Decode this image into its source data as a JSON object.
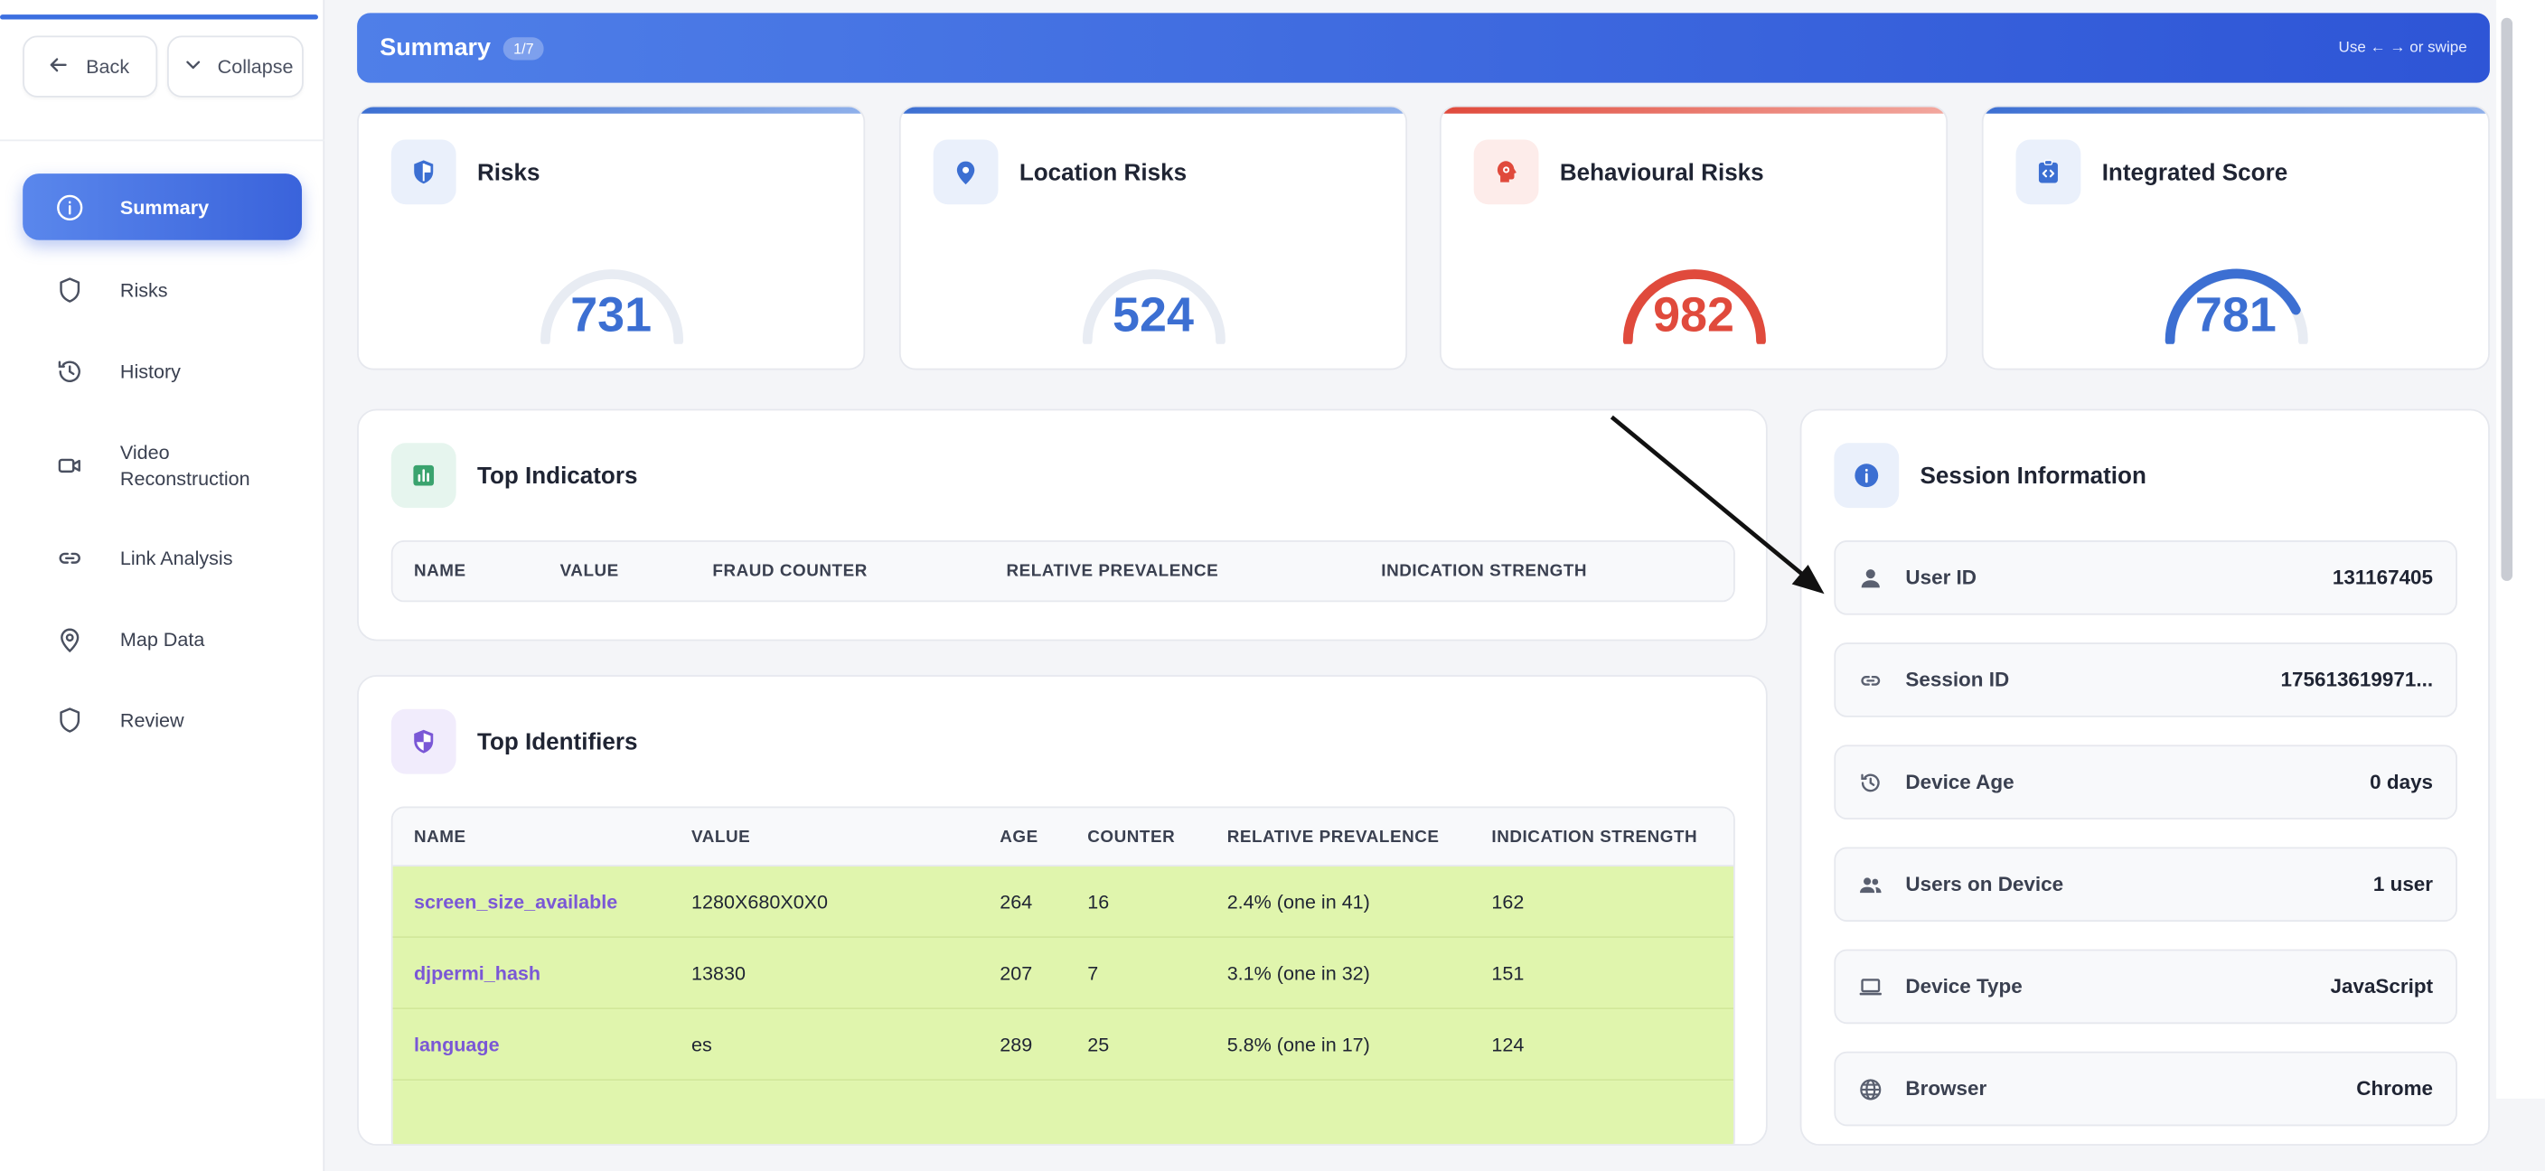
{
  "sidebar": {
    "back_label": "Back",
    "collapse_label": "Collapse",
    "items": [
      {
        "label": "Summary",
        "icon": "info-icon",
        "active": true
      },
      {
        "label": "Risks",
        "icon": "shield-icon"
      },
      {
        "label": "History",
        "icon": "history-icon"
      },
      {
        "label": "Video Reconstruction",
        "icon": "video-icon"
      },
      {
        "label": "Link Analysis",
        "icon": "link-icon"
      },
      {
        "label": "Map Data",
        "icon": "map-pin-icon"
      },
      {
        "label": "Review",
        "icon": "shield-icon"
      }
    ]
  },
  "header": {
    "title": "Summary",
    "badge": "1/7",
    "hint": "Use ← → or swipe"
  },
  "score_cards": [
    {
      "title": "Risks",
      "value": "731",
      "icon": "shield-half-icon",
      "accent": "#3c6fd2"
    },
    {
      "title": "Location Risks",
      "value": "524",
      "icon": "map-pin-icon",
      "accent": "#3c6fd2"
    },
    {
      "title": "Behavioural Risks",
      "value": "982",
      "icon": "brain-alert-icon",
      "accent": "#e04a3c"
    },
    {
      "title": "Integrated Score",
      "value": "781",
      "icon": "code-icon",
      "accent": "#3c6fd2"
    }
  ],
  "top_indicators": {
    "title": "Top Indicators",
    "columns": [
      "NAME",
      "VALUE",
      "FRAUD COUNTER",
      "RELATIVE PREVALENCE",
      "INDICATION STRENGTH"
    ]
  },
  "top_identifiers": {
    "title": "Top Identifiers",
    "columns": [
      "NAME",
      "VALUE",
      "AGE",
      "COUNTER",
      "RELATIVE PREVALENCE",
      "INDICATION STRENGTH"
    ],
    "rows": [
      [
        "screen_size_available",
        "1280X680X0X0",
        "264",
        "16",
        "2.4% (one in 41)",
        "162"
      ],
      [
        "djpermi_hash",
        "13830",
        "207",
        "7",
        "3.1% (one in 32)",
        "151"
      ],
      [
        "language",
        "es",
        "289",
        "25",
        "5.8% (one in 17)",
        "124"
      ]
    ]
  },
  "session_info": {
    "title": "Session Information",
    "rows": [
      {
        "label": "User ID",
        "value": "131167405",
        "icon": "user-icon"
      },
      {
        "label": "Session ID",
        "value": "175613619971...",
        "icon": "link-icon"
      },
      {
        "label": "Device Age",
        "value": "0 days",
        "icon": "history-icon"
      },
      {
        "label": "Users on Device",
        "value": "1 user",
        "icon": "users-icon"
      },
      {
        "label": "Device Type",
        "value": "JavaScript",
        "icon": "laptop-icon"
      },
      {
        "label": "Browser",
        "value": "Chrome",
        "icon": "globe-icon"
      }
    ]
  }
}
